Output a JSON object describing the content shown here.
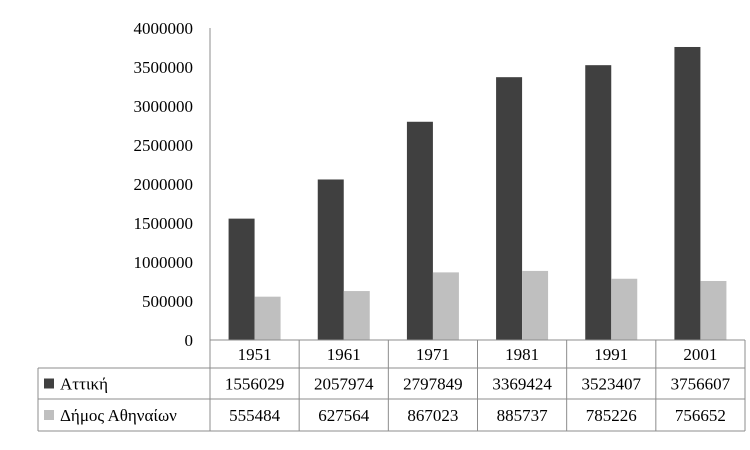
{
  "chart_data": {
    "type": "bar",
    "categories": [
      "1951",
      "1961",
      "1971",
      "1981",
      "1991",
      "2001"
    ],
    "series": [
      {
        "name": "Αττική",
        "color": "#404040",
        "values": [
          1556029,
          2057974,
          2797849,
          3369424,
          3523407,
          3756607
        ]
      },
      {
        "name": "Δήμος Αθηναίων",
        "color": "#bfbfbf",
        "values": [
          555484,
          627564,
          867023,
          885737,
          785226,
          756652
        ]
      }
    ],
    "title": "",
    "xlabel": "",
    "ylabel": "",
    "ylim": [
      0,
      4000000
    ],
    "yticks": [
      0,
      500000,
      1000000,
      1500000,
      2000000,
      2500000,
      3000000,
      3500000,
      4000000
    ],
    "grid": false,
    "legend": "data-table",
    "data_table": true
  }
}
